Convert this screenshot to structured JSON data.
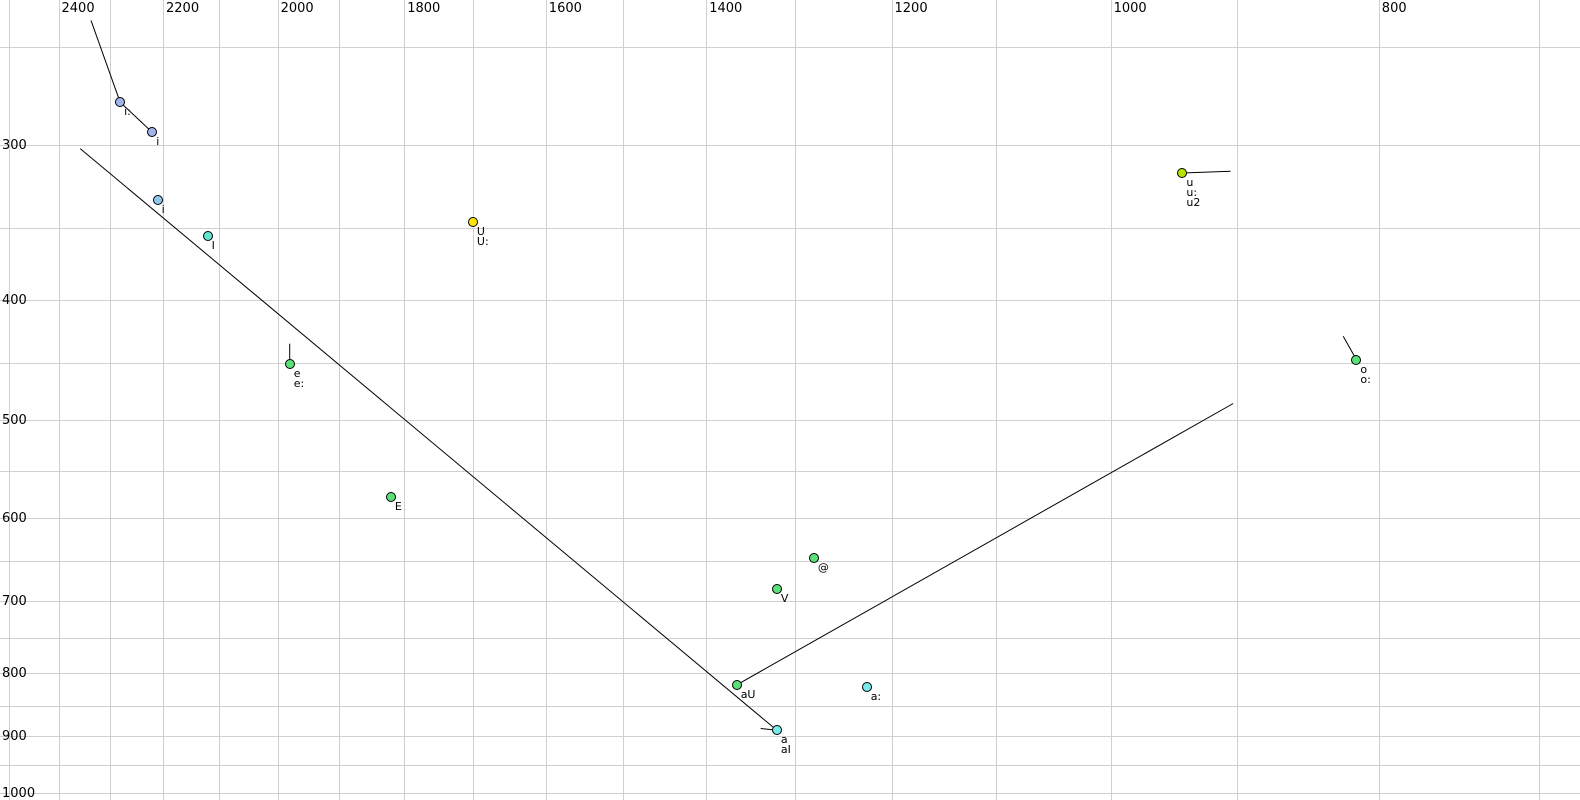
{
  "chart_data": {
    "type": "scatter",
    "title": "",
    "description": "Vowel formant plot: F2 (Hz) on reversed log-scaled top axis, F1 (Hz) on log-scaled left axis increasing downward",
    "x_axis": {
      "unit": "Hz",
      "scale": "log",
      "reversed": true,
      "range_hz": [
        2520,
        680
      ],
      "tick_labels": [
        {
          "text": "2400",
          "hz": 2400
        },
        {
          "text": "2200",
          "hz": 2200
        },
        {
          "text": "2000",
          "hz": 2000
        },
        {
          "text": "1800",
          "hz": 1800
        },
        {
          "text": "1600",
          "hz": 1600
        },
        {
          "text": "1400",
          "hz": 1400
        },
        {
          "text": "1200",
          "hz": 1200
        },
        {
          "text": "1000",
          "hz": 1000
        },
        {
          "text": "800",
          "hz": 800
        }
      ],
      "gridlines_hz": [
        2500,
        2400,
        2300,
        2200,
        2100,
        2000,
        1900,
        1800,
        1700,
        1600,
        1500,
        1400,
        1300,
        1200,
        1100,
        1000,
        900,
        800,
        700
      ]
    },
    "y_axis": {
      "unit": "Hz",
      "scale": "log",
      "reversed": false,
      "range_hz": [
        228,
        1010
      ],
      "tick_labels": [
        {
          "text": "300",
          "hz": 300
        },
        {
          "text": "400",
          "hz": 400
        },
        {
          "text": "500",
          "hz": 500
        },
        {
          "text": "600",
          "hz": 600
        },
        {
          "text": "700",
          "hz": 700
        },
        {
          "text": "800",
          "hz": 800
        },
        {
          "text": "900",
          "hz": 900
        },
        {
          "text": "1000",
          "hz": 1000
        }
      ],
      "gridlines_hz": [
        250,
        300,
        350,
        400,
        450,
        500,
        550,
        600,
        650,
        700,
        750,
        800,
        850,
        900,
        950,
        1000
      ]
    },
    "points": [
      {
        "labels": [
          "i:"
        ],
        "f2": 2280,
        "f1": 277,
        "color": "#a3b4ec"
      },
      {
        "labels": [
          "i"
        ],
        "f2": 2220,
        "f1": 293,
        "color": "#a3b4ec"
      },
      {
        "labels": [
          "i"
        ],
        "f2": 2210,
        "f1": 332,
        "color": "#8ec9f0"
      },
      {
        "labels": [
          "I"
        ],
        "f2": 2120,
        "f1": 355,
        "color": "#63e6d0"
      },
      {
        "labels": [
          "U",
          "U:"
        ],
        "f2": 1700,
        "f1": 346,
        "color": "#ffe408"
      },
      {
        "labels": [
          "u",
          "u:",
          "u2"
        ],
        "f2": 942,
        "f1": 316,
        "color": "#b6e400"
      },
      {
        "labels": [
          "e",
          "e:"
        ],
        "f2": 1980,
        "f1": 451,
        "color": "#59e178"
      },
      {
        "labels": [
          "E"
        ],
        "f2": 1820,
        "f1": 577,
        "color": "#59e178"
      },
      {
        "labels": [
          "@"
        ],
        "f2": 1280,
        "f1": 646,
        "color": "#59e178"
      },
      {
        "labels": [
          "V"
        ],
        "f2": 1320,
        "f1": 684,
        "color": "#59e178"
      },
      {
        "labels": [
          "aU"
        ],
        "f2": 1365,
        "f1": 818,
        "color": "#59e178"
      },
      {
        "labels": [
          "a:"
        ],
        "f2": 1225,
        "f1": 821,
        "color": "#79e9e9"
      },
      {
        "labels": [
          "a",
          "aI"
        ],
        "f2": 1320,
        "f1": 890,
        "color": "#79e9e9"
      },
      {
        "labels": [
          "o",
          "o:"
        ],
        "f2": 815,
        "f1": 447,
        "color": "#59e178"
      }
    ],
    "segments": [
      {
        "name": "into-i-long",
        "from": [
          2336,
          238
        ],
        "to": [
          2280,
          277
        ]
      },
      {
        "name": "i-long-to-i",
        "from": [
          2280,
          277
        ],
        "to": [
          2220,
          293
        ]
      },
      {
        "name": "front-diagonal-edge",
        "from": [
          2357,
          302
        ],
        "to": [
          1320,
          890
        ]
      },
      {
        "name": "back-diagonal-edge",
        "from": [
          1365,
          818
        ],
        "to": [
          903,
          485
        ]
      },
      {
        "name": "tick-above-e",
        "from": [
          1980,
          434
        ],
        "to": [
          1980,
          451
        ]
      },
      {
        "name": "into-o",
        "from": [
          824,
          428
        ],
        "to": [
          815,
          447
        ]
      },
      {
        "name": "from-u-horizontal",
        "from": [
          942,
          316
        ],
        "to": [
          905,
          315
        ]
      },
      {
        "name": "tick-into-a",
        "from": [
          1338,
          887
        ],
        "to": [
          1320,
          890
        ]
      }
    ],
    "colors": {
      "background": "#ffffff",
      "grid": "#d0d0d0",
      "line": "#000000",
      "tick_text": "#000000",
      "label_text": "#000000"
    }
  }
}
